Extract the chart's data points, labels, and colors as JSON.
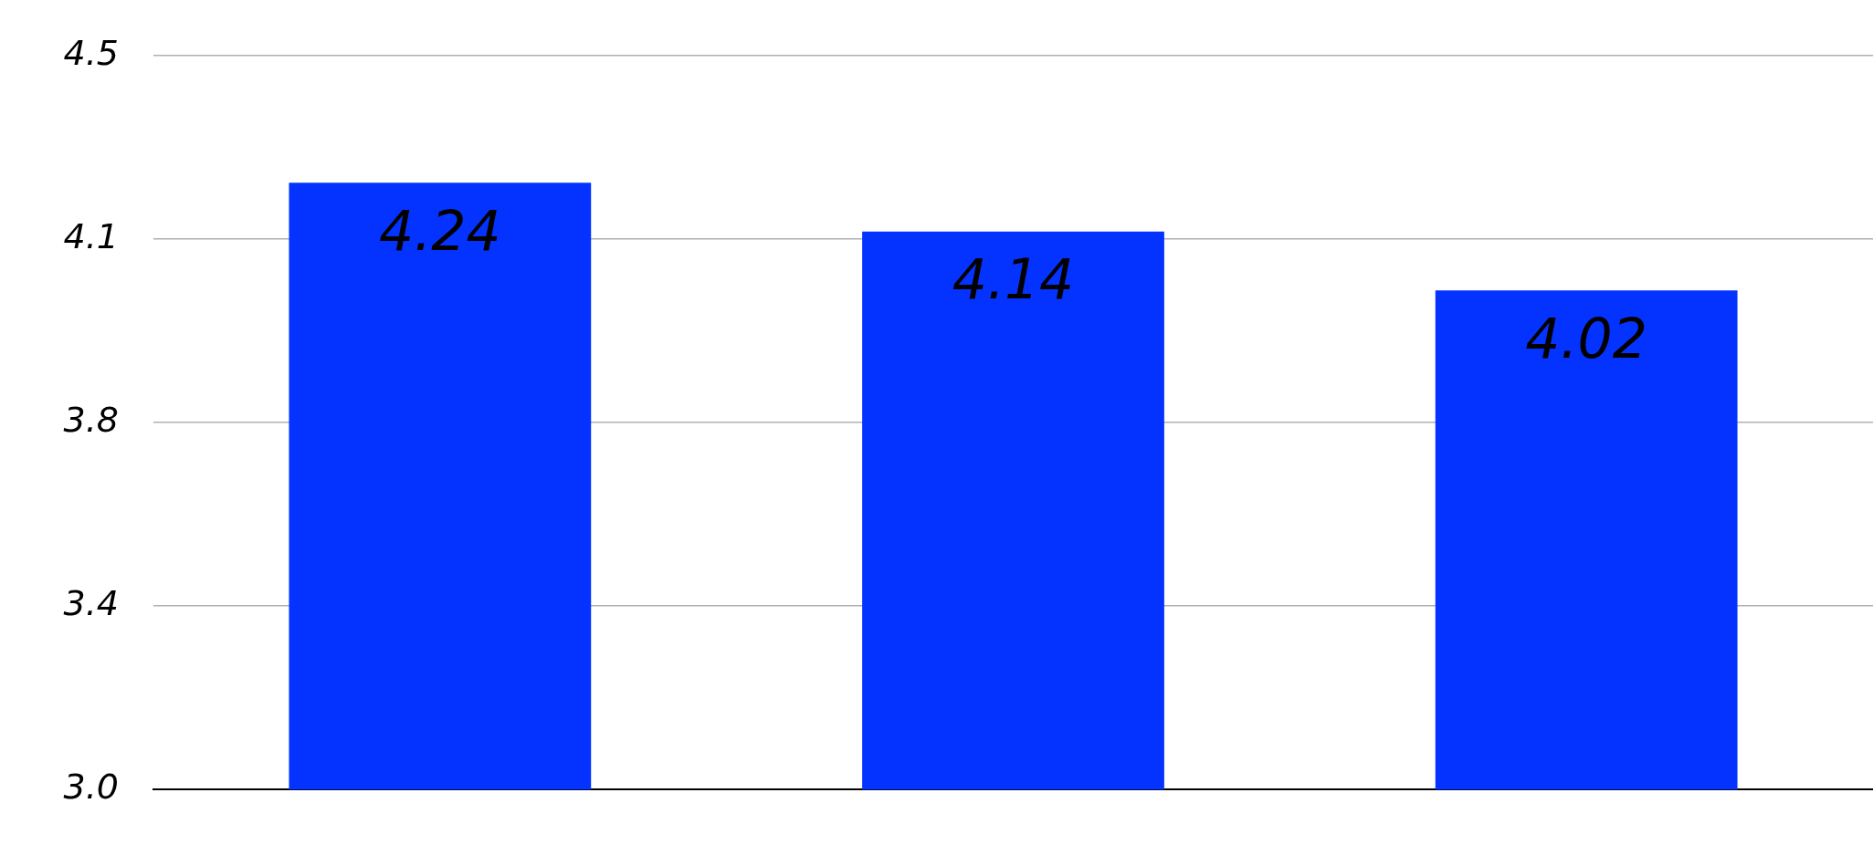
{
  "chart_data": {
    "type": "bar",
    "categories": [
      null,
      null,
      null
    ],
    "values": [
      4.24,
      4.14,
      4.02
    ],
    "color": "#0433ff",
    "ylim": [
      3.0,
      4.5
    ],
    "yticks": [
      {
        "value": 3.0,
        "label": "3.0"
      },
      {
        "value": 3.375,
        "label": "3.4"
      },
      {
        "value": 3.75,
        "label": "3.8"
      },
      {
        "value": 4.125,
        "label": "4.1"
      },
      {
        "value": 4.5,
        "label": "4.5"
      }
    ],
    "grid": "y",
    "data_labels": true
  }
}
